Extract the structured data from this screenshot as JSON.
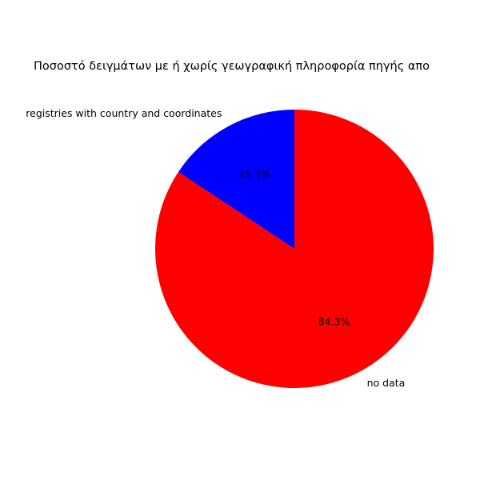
{
  "chart_data": {
    "type": "pie",
    "title": "Ποσοστό δειγμάτων με ή χωρίς γεωγραφική πληροφορία πηγής απο",
    "slices": [
      {
        "label": "registries with country and coordinates",
        "value": 15.7,
        "pct_label": "15.7%",
        "color": "#0000ff"
      },
      {
        "label": "no data",
        "value": 84.3,
        "pct_label": "84.3%",
        "color": "#ff0000"
      }
    ],
    "start_angle_deg": 90,
    "direction": "counterclockwise",
    "legend": "none"
  }
}
